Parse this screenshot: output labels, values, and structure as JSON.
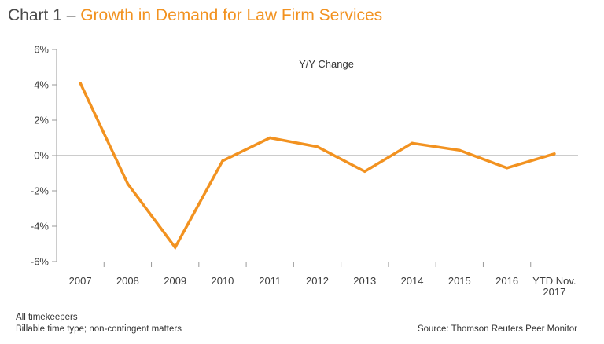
{
  "title_lead": "Chart 1 – ",
  "title_main": "Growth in Demand for Law Firm Services",
  "colors": {
    "title_lead": "#4a4a4a",
    "accent": "#f29220",
    "axis": "#9a9a9a"
  },
  "chart_data": {
    "type": "line",
    "title": "Chart 1 – Growth in Demand for Law Firm Services",
    "categories": [
      "2007",
      "2008",
      "2009",
      "2010",
      "2011",
      "2012",
      "2013",
      "2014",
      "2015",
      "2016",
      "YTD Nov. 2017"
    ],
    "category_labels": [
      [
        "2007"
      ],
      [
        "2008"
      ],
      [
        "2009"
      ],
      [
        "2010"
      ],
      [
        "2011"
      ],
      [
        "2012"
      ],
      [
        "2013"
      ],
      [
        "2014"
      ],
      [
        "2015"
      ],
      [
        "2016"
      ],
      [
        "YTD Nov.",
        "2017"
      ]
    ],
    "series": [
      {
        "name": "Y/Y Change",
        "values": [
          4.1,
          -1.6,
          -5.2,
          -0.3,
          1.0,
          0.5,
          -0.9,
          0.7,
          0.3,
          -0.7,
          0.1
        ]
      }
    ],
    "series_label": "Y/Y Change",
    "ylim": [
      -6,
      6
    ],
    "yticks": [
      -6,
      -4,
      -2,
      0,
      2,
      4,
      6
    ],
    "ytick_labels": [
      "-6%",
      "-4%",
      "-2%",
      "0%",
      "2%",
      "4%",
      "6%"
    ],
    "xlabel": "",
    "ylabel": "",
    "grid": false,
    "zero_line": true
  },
  "footnotes": {
    "line1": "All timekeepers",
    "line2": "Billable time type; non-contingent matters",
    "source": "Source: Thomson Reuters Peer Monitor"
  }
}
